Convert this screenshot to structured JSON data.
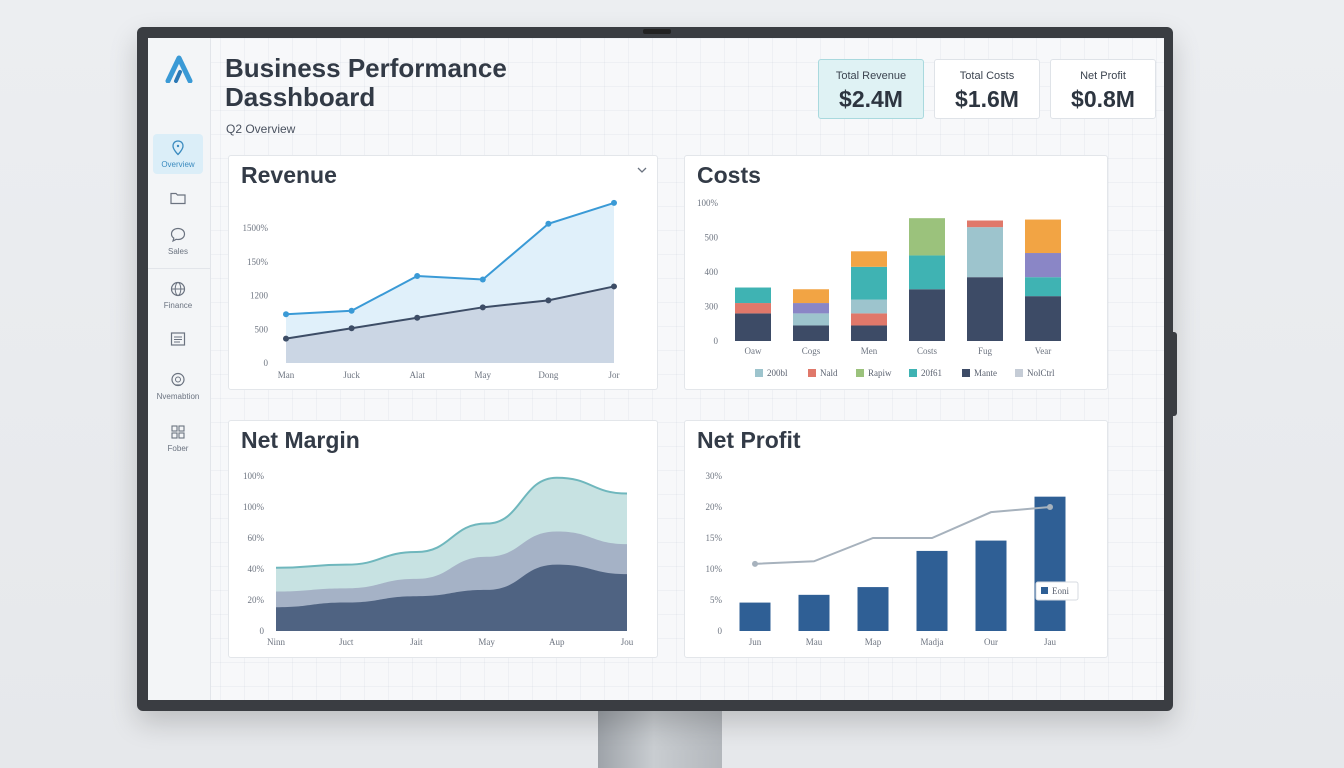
{
  "app": {
    "title": "Business Performance Dasshboard",
    "subtitle": "Q2 Overview"
  },
  "sidebar": {
    "items": [
      {
        "label": "Overview",
        "icon": "location-pin-icon",
        "active": true
      },
      {
        "label": "",
        "icon": "folder-icon",
        "active": false
      },
      {
        "label": "Sales",
        "icon": "chat-bubble-icon",
        "active": false
      },
      {
        "label": "Finance",
        "icon": "globe-icon",
        "active": false
      },
      {
        "label": "",
        "icon": "document-icon",
        "active": false
      },
      {
        "label": "Nvemabtion",
        "icon": "support-icon",
        "active": false
      },
      {
        "label": "Fober",
        "icon": "grid-icon",
        "active": false
      }
    ]
  },
  "kpis": [
    {
      "label": "Total Revenue",
      "value": "$2.4M",
      "highlight": true
    },
    {
      "label": "Total Costs",
      "value": "$1.6M",
      "highlight": false
    },
    {
      "label": "Net Profit",
      "value": "$0.8M",
      "highlight": false
    }
  ],
  "colors": {
    "accent": "#3a9ad6",
    "navy": "#3d4d66",
    "teal": "#6fb7bd"
  },
  "cards": {
    "revenue": {
      "title": "Revenue",
      "menu_icon": "chevron-down-icon"
    },
    "costs": {
      "title": "Costs"
    },
    "net_margin": {
      "title": "Net Margin"
    },
    "net_profit": {
      "title": "Net Profit"
    }
  },
  "chart_data": [
    {
      "id": "revenue",
      "type": "area",
      "title": "Revenue",
      "categories": [
        "Man",
        "Juck",
        "Alat",
        "May",
        "Dong",
        "Jor"
      ],
      "y_ticks": [
        "0",
        "500",
        "1200",
        "150%",
        "1500%"
      ],
      "series": [
        {
          "values": [
            1.4,
            1.5,
            2.5,
            2.4,
            4.0,
            4.6
          ],
          "color": "#3a9ad6"
        },
        {
          "values": [
            0.7,
            1.0,
            1.3,
            1.6,
            1.8,
            2.2
          ],
          "color": "#3d4d66"
        }
      ],
      "ylim": [
        0,
        5
      ]
    },
    {
      "id": "costs",
      "type": "bar",
      "stacked": true,
      "title": "Costs",
      "categories": [
        "Oaw",
        "Cogs",
        "Men",
        "Costs",
        "Fug",
        "Vear"
      ],
      "y_ticks": [
        "0",
        "300",
        "400",
        "500",
        "100%"
      ],
      "legend": [
        "200bl",
        "Nald",
        "Rapiw",
        "20f61",
        "Mante",
        "NolCtrl"
      ],
      "segment_colors": [
        "#3d4b66",
        "#e0786a",
        "#9dc4cd",
        "#3fb3b3",
        "#8a86c6",
        "#f2a444",
        "#9bc27c"
      ],
      "series": [
        {
          "name": "base",
          "values": [
            0.8,
            0.45,
            0.45,
            1.5,
            1.85,
            1.3
          ]
        },
        {
          "name": "salmon",
          "values": [
            0.3,
            0.0,
            0.35,
            0.0,
            0.0,
            0.0
          ]
        },
        {
          "name": "lightblue",
          "values": [
            0.0,
            0.35,
            0.4,
            0.0,
            1.45,
            0.0
          ]
        },
        {
          "name": "teal",
          "values": [
            0.45,
            0.0,
            0.95,
            0.98,
            0.0,
            0.55
          ]
        },
        {
          "name": "purple",
          "values": [
            0.0,
            0.3,
            0.0,
            0.0,
            0.0,
            0.7
          ]
        },
        {
          "name": "orange",
          "values": [
            0.0,
            0.4,
            0.45,
            0.0,
            0.0,
            0.97
          ]
        },
        {
          "name": "green",
          "values": [
            0.0,
            0.0,
            0.0,
            1.08,
            0.0,
            0.0
          ]
        }
      ],
      "top_accent": {
        "color": "#e0786a",
        "values": [
          0,
          0,
          0,
          0,
          0.55,
          0
        ]
      },
      "ylim": [
        0,
        4
      ]
    },
    {
      "id": "net_margin",
      "type": "area",
      "stacked": true,
      "title": "Net Margin",
      "categories": [
        "Ninn",
        "Juct",
        "Jait",
        "May",
        "Aup",
        "Jou"
      ],
      "y_ticks": [
        "0",
        "20%",
        "40%",
        "60%",
        "100%",
        "100%"
      ],
      "series": [
        {
          "values": [
            15,
            18,
            22,
            26,
            42,
            36
          ],
          "color": "#4f6382"
        },
        {
          "values": [
            25,
            27,
            33,
            47,
            63,
            55
          ],
          "color": "#a5b2c6"
        },
        {
          "values": [
            40,
            42,
            50,
            68,
            97,
            87
          ],
          "color": "#c7e2e2",
          "line_color": "#6fb7bd"
        }
      ],
      "ylim": [
        0,
        100
      ]
    },
    {
      "id": "net_profit",
      "type": "bar",
      "title": "Net Profit",
      "categories": [
        "Jun",
        "Mau",
        "Map",
        "Madja",
        "Our",
        "Jau"
      ],
      "y_ticks": [
        "0",
        "5%",
        "10%",
        "15%",
        "20%",
        "30%"
      ],
      "values": [
        5.5,
        7,
        8.5,
        15.5,
        17.5,
        26
      ],
      "line_values": [
        13,
        13.5,
        18,
        18,
        23,
        24
      ],
      "legend": [
        "Eoni"
      ],
      "colors": {
        "bar": "#2f5f95",
        "line": "#a7b2bd"
      },
      "ylim": [
        0,
        30
      ]
    }
  ]
}
